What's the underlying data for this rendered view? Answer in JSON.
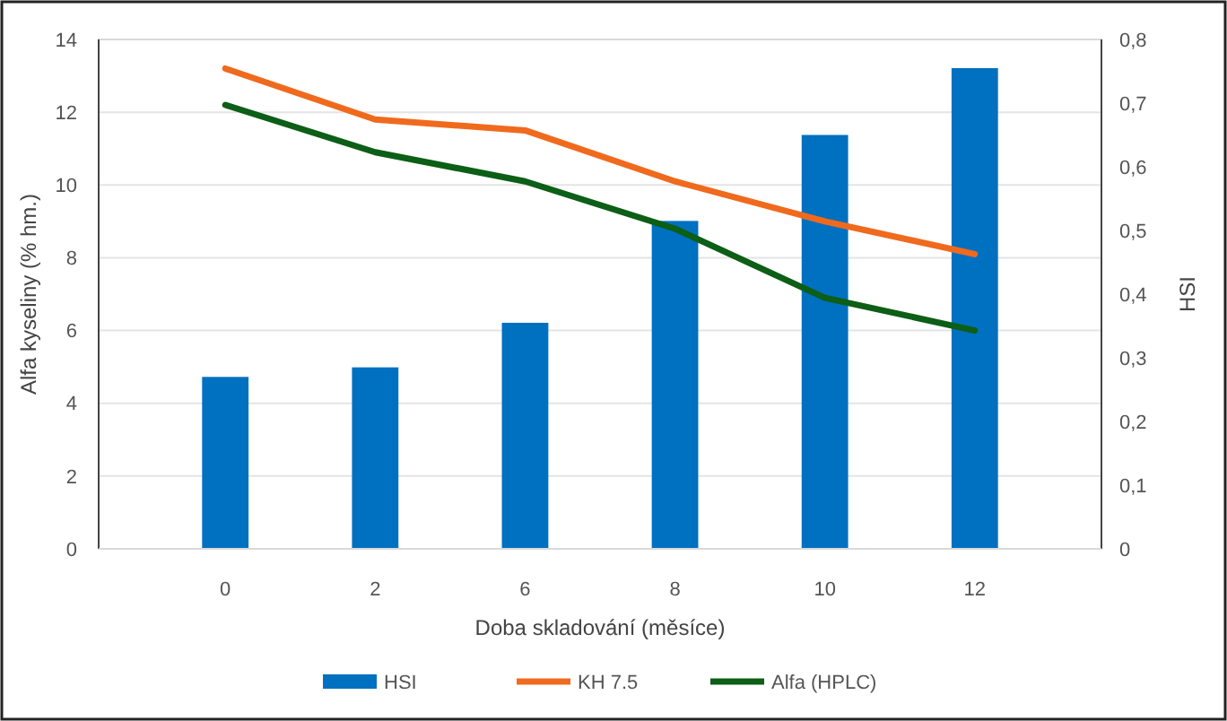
{
  "chart_data": {
    "type": "bar",
    "xlabel": "Doba skladování (měsíce)",
    "ylabel": "Alfa kyseliny (% hm.)",
    "y2label": "HSI",
    "categories": [
      "0",
      "2",
      "6",
      "8",
      "10",
      "12"
    ],
    "series": [
      {
        "name": "HSI",
        "axis": "y2",
        "color": "#0070c0",
        "values": [
          0.27,
          0.285,
          0.355,
          0.515,
          0.65,
          0.755
        ]
      },
      {
        "name": "KH 7.5",
        "type": "line",
        "color": "#f06a1e",
        "values": [
          13.2,
          11.8,
          11.5,
          10.1,
          9.0,
          8.1
        ]
      },
      {
        "name": "Alfa (HPLC)",
        "type": "line",
        "color": "#0d5e16",
        "values": [
          12.2,
          10.9,
          10.1,
          8.8,
          6.9,
          6.0
        ]
      }
    ],
    "ylim": [
      0,
      14
    ],
    "yticks": [
      0,
      2,
      4,
      6,
      8,
      10,
      12,
      14
    ],
    "y2lim": [
      0,
      0.8
    ],
    "y2ticks": [
      {
        "value": 0,
        "label": "0"
      },
      {
        "value": 0.1,
        "label": "0,1"
      },
      {
        "value": 0.2,
        "label": "0,2"
      },
      {
        "value": 0.3,
        "label": "0,3"
      },
      {
        "value": 0.4,
        "label": "0,4"
      },
      {
        "value": 0.5,
        "label": "0,5"
      },
      {
        "value": 0.6,
        "label": "0,6"
      },
      {
        "value": 0.7,
        "label": "0,7"
      },
      {
        "value": 0.8,
        "label": "0,8"
      }
    ],
    "grid": "y",
    "legend": "bottom",
    "marker": "none",
    "line_style": "solid"
  }
}
